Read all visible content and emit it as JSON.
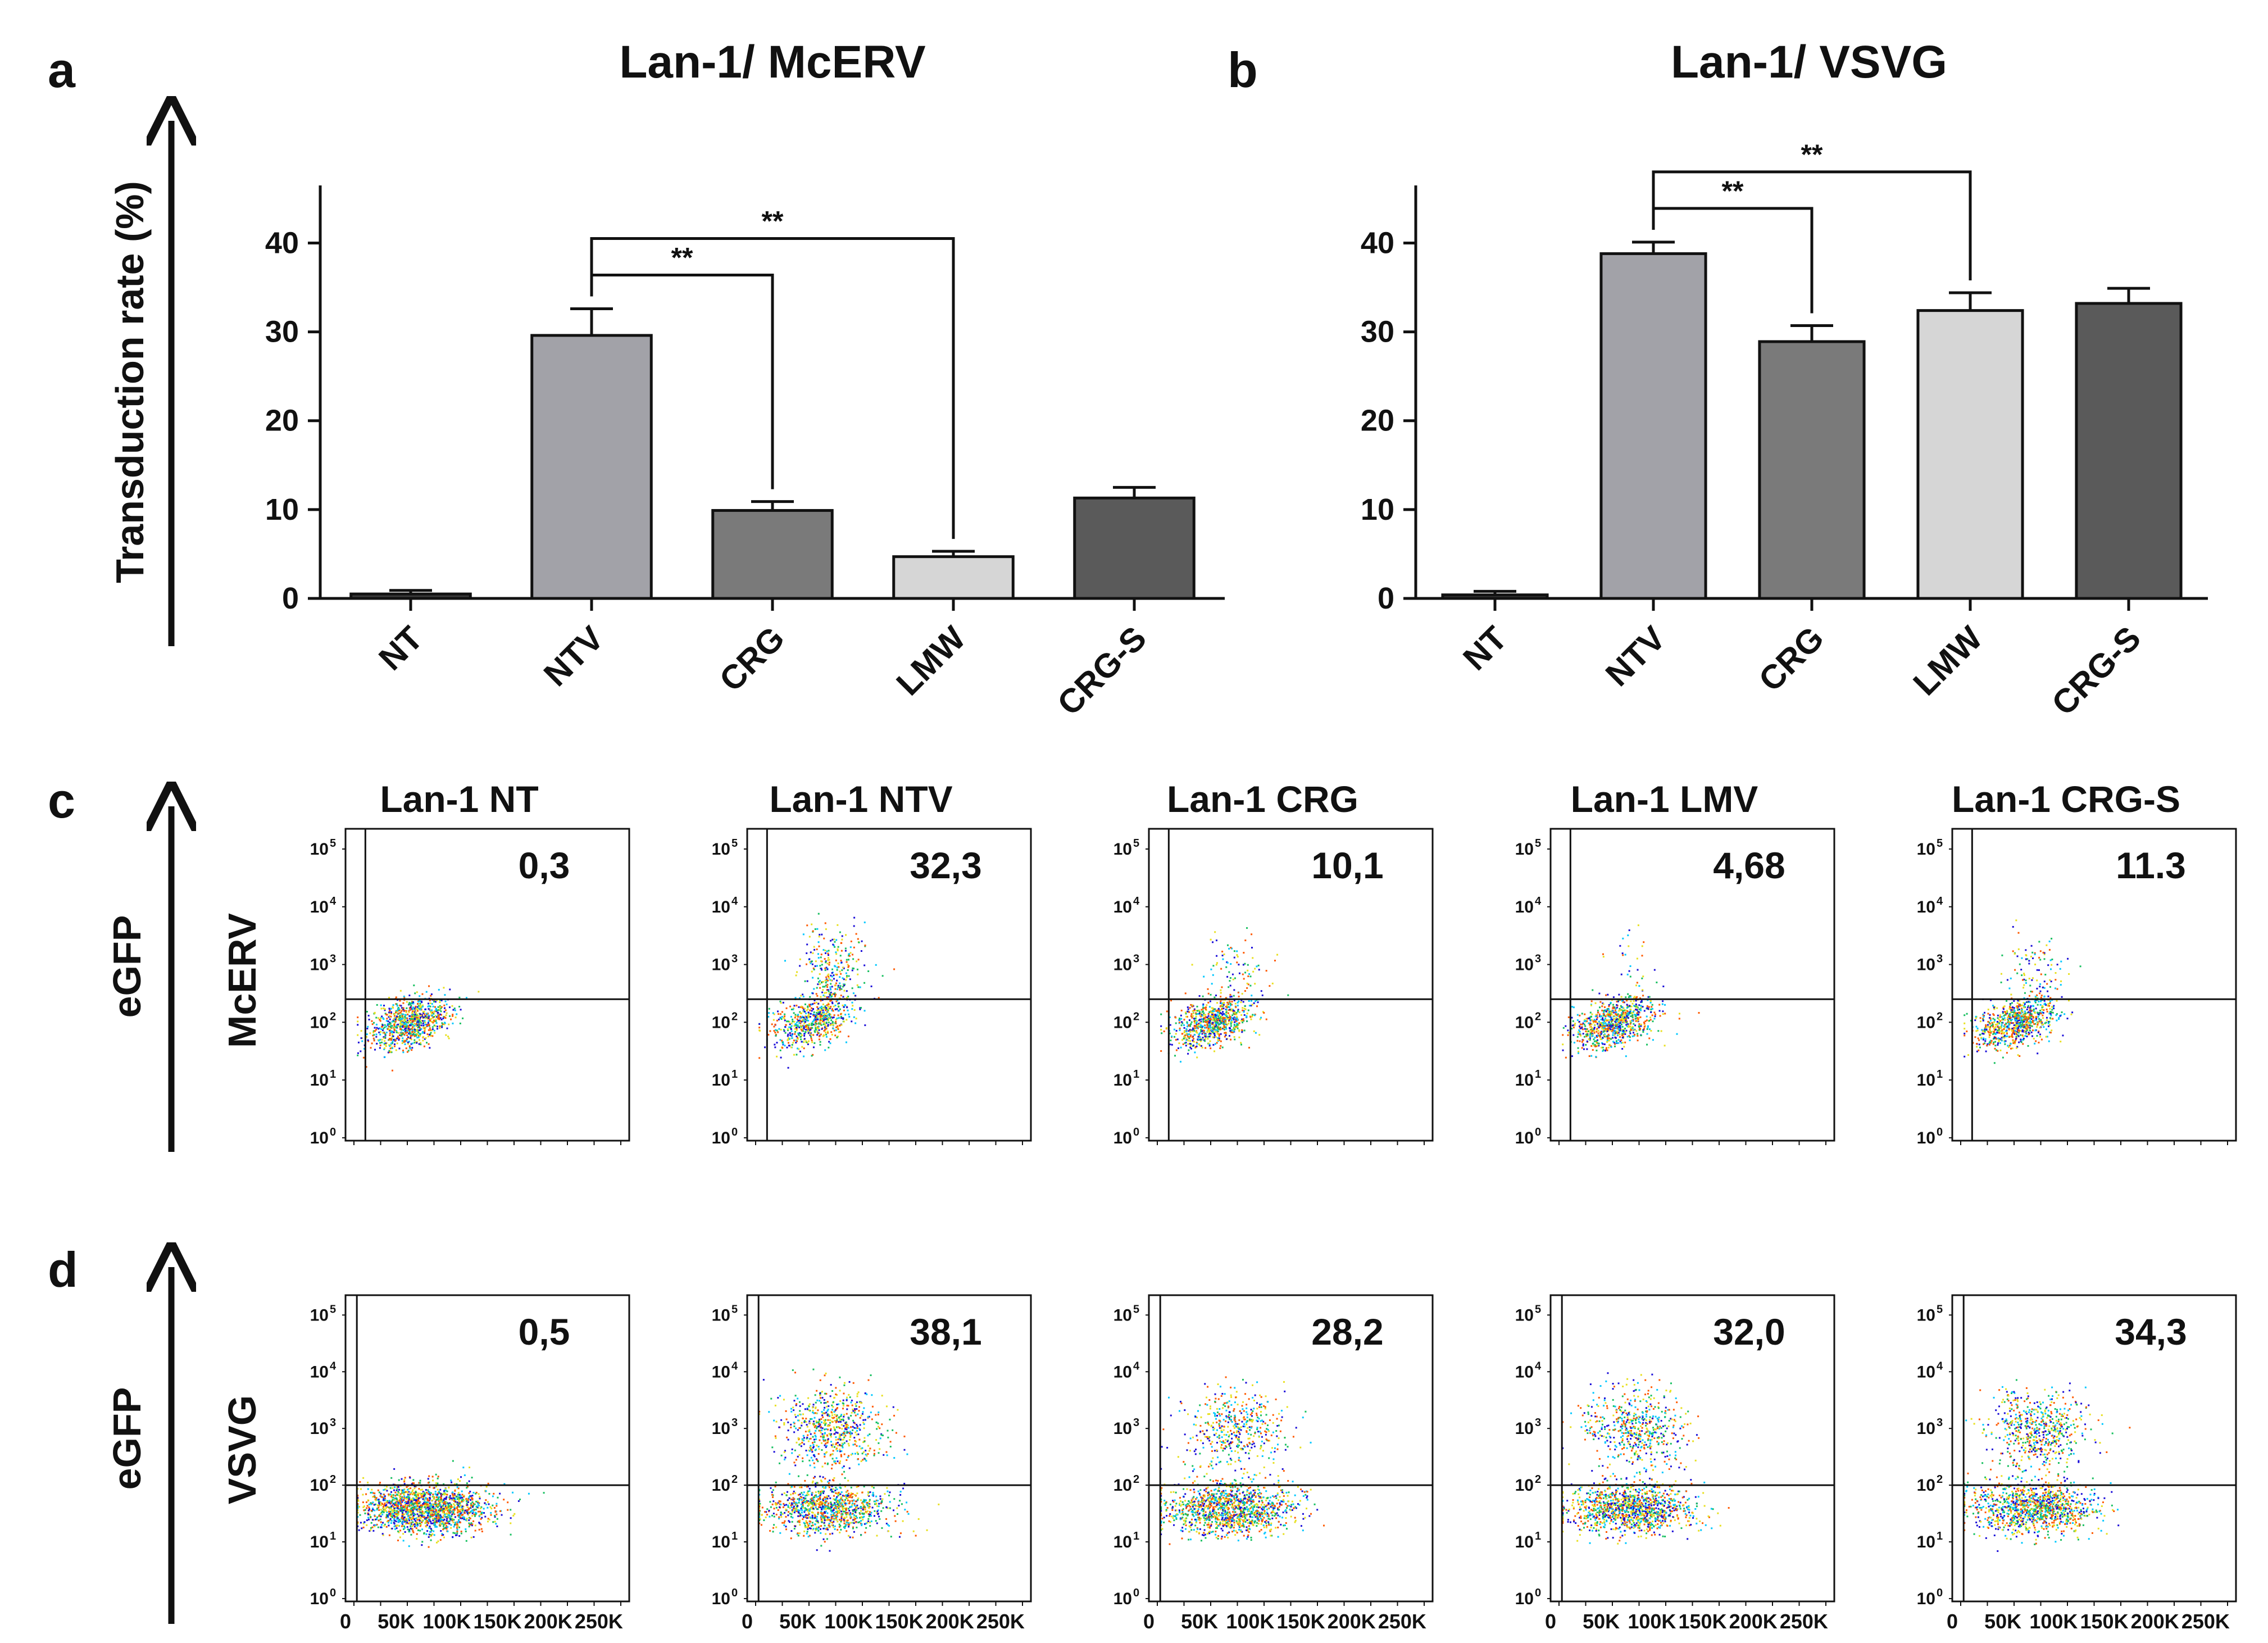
{
  "panels": {
    "a": "a",
    "b": "b",
    "c": "c",
    "d": "d"
  },
  "bar_ylabel": "Transduction rate (%)",
  "flow_axis_label": "eGFP",
  "flow_row_labels": [
    "McERV",
    "VSVG"
  ],
  "flow_column_titles": [
    "Lan-1 NT",
    "Lan-1 NTV",
    "Lan-1 CRG",
    "Lan-1 LMV",
    "Lan-1 CRG-S"
  ],
  "flow_x_ticks": [
    "0",
    "50K",
    "100K",
    "150K",
    "200K",
    "250K"
  ],
  "flow_y_ticks": [
    "10",
    "10",
    "10",
    "10",
    "10",
    "10"
  ],
  "flow_y_exponents": [
    "0",
    "1",
    "2",
    "3",
    "4",
    "5"
  ],
  "colors": {
    "NT": "#3a3a3a",
    "NTV": "#a2a2a8",
    "CRG": "#7a7a7a",
    "LMW": "#d6d6d6",
    "CRG-S": "#5a5a5a",
    "density": [
      "#1a0dd8",
      "#00c8ff",
      "#18c060",
      "#e8e020",
      "#ff5a00"
    ]
  },
  "chart_data": [
    {
      "type": "bar",
      "title": "Lan-1/ McERV",
      "ylabel": "Transduction rate (%)",
      "categories": [
        "NT",
        "NTV",
        "CRG",
        "LMW",
        "CRG-S"
      ],
      "values": [
        0.5,
        29.6,
        9.9,
        4.7,
        11.3
      ],
      "errors": [
        0.4,
        3.0,
        1.0,
        0.6,
        1.2
      ],
      "ylim": [
        0,
        43
      ],
      "yticks": [
        0,
        10,
        20,
        30,
        40
      ],
      "significance": [
        {
          "from": "NTV",
          "to": "CRG",
          "label": "**"
        },
        {
          "from": "NTV",
          "to": "LMW",
          "label": "**"
        }
      ]
    },
    {
      "type": "bar",
      "title": "Lan-1/ VSVG",
      "ylabel": "",
      "categories": [
        "NT",
        "NTV",
        "CRG",
        "LMW",
        "CRG-S"
      ],
      "values": [
        0.4,
        38.8,
        28.9,
        32.4,
        33.2
      ],
      "errors": [
        0.4,
        1.3,
        1.8,
        2.0,
        1.7
      ],
      "ylim": [
        0,
        43
      ],
      "yticks": [
        0,
        10,
        20,
        30,
        40
      ],
      "significance": [
        {
          "from": "NTV",
          "to": "CRG",
          "label": "**"
        },
        {
          "from": "NTV",
          "to": "LMW",
          "label": "**"
        }
      ]
    },
    {
      "type": "scatter",
      "row": "McERV",
      "percent_labels": [
        "0,3",
        "32,3",
        "10,1",
        "4,68",
        "11.3"
      ],
      "gate_log10": 2.45
    },
    {
      "type": "scatter",
      "row": "VSVG",
      "percent_labels": [
        "0,5",
        "38,1",
        "28,2",
        "32,0",
        "34,3"
      ],
      "gate_log10": 2.05
    }
  ]
}
